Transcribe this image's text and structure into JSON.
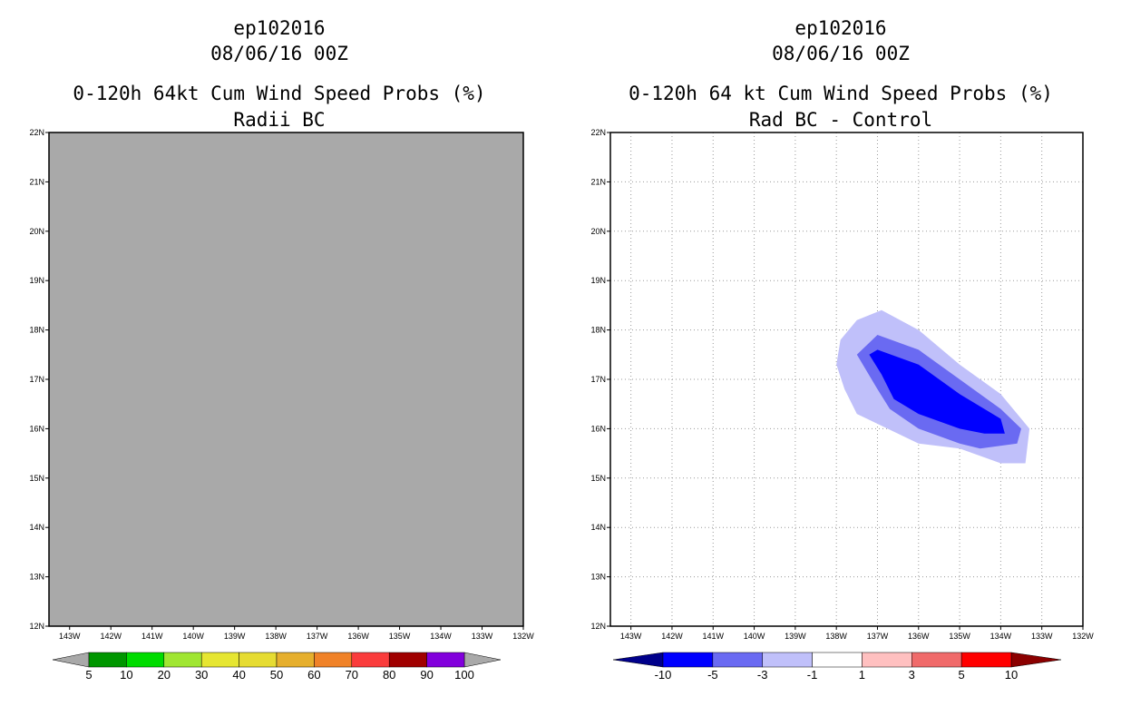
{
  "colors": {
    "missing_fill": "#a9a9a9",
    "frame": "#000000",
    "grid": "#999999",
    "contour": {
      "-10": "#0000ff",
      "-5": "#6a6af2",
      "-3": "#c0c0fa"
    }
  },
  "chart_data": [
    {
      "type": "heatmap",
      "storm_id": "ep102016",
      "init_time": "08/06/16 00Z",
      "title": "0-120h 64kt Cum Wind Speed Probs (%)",
      "subtitle": "Radii BC",
      "x_axis": {
        "range": [
          -143.5,
          -132
        ],
        "tick_values": [
          -143,
          -142,
          -141,
          -140,
          -139,
          -138,
          -137,
          -136,
          -135,
          -134,
          -133,
          -132
        ],
        "tick_labels": [
          "143W",
          "142W",
          "141W",
          "140W",
          "139W",
          "138W",
          "137W",
          "136W",
          "135W",
          "134W",
          "133W",
          "132W"
        ]
      },
      "y_axis": {
        "range": [
          12,
          22
        ],
        "tick_values": [
          12,
          13,
          14,
          15,
          16,
          17,
          18,
          19,
          20,
          21,
          22
        ],
        "tick_labels": [
          "12N",
          "13N",
          "14N",
          "15N",
          "16N",
          "17N",
          "18N",
          "19N",
          "20N",
          "21N",
          "22N"
        ]
      },
      "grid": false,
      "field": "undefined (entire domain shaded gray, no probability contours)",
      "colorbar": {
        "labels": [
          "5",
          "10",
          "20",
          "30",
          "40",
          "50",
          "60",
          "70",
          "80",
          "90",
          "100"
        ],
        "colors": [
          "#009600",
          "#00dc00",
          "#a0e632",
          "#e6e632",
          "#e6dc32",
          "#e6af2d",
          "#f08228",
          "#fa3c3c",
          "#a00000",
          "#8200dc"
        ],
        "end_color": "#a9a9a9"
      }
    },
    {
      "type": "heatmap",
      "storm_id": "ep102016",
      "init_time": "08/06/16 00Z",
      "title": "0-120h 64 kt Cum Wind Speed Probs (%)",
      "subtitle": "Rad BC - Control",
      "x_axis": {
        "range": [
          -143.5,
          -132
        ],
        "tick_values": [
          -143,
          -142,
          -141,
          -140,
          -139,
          -138,
          -137,
          -136,
          -135,
          -134,
          -133,
          -132
        ],
        "tick_labels": [
          "143W",
          "142W",
          "141W",
          "140W",
          "139W",
          "138W",
          "137W",
          "136W",
          "135W",
          "134W",
          "133W",
          "132W"
        ]
      },
      "y_axis": {
        "range": [
          12,
          22
        ],
        "tick_values": [
          12,
          13,
          14,
          15,
          16,
          17,
          18,
          19,
          20,
          21,
          22
        ],
        "tick_labels": [
          "12N",
          "13N",
          "14N",
          "15N",
          "16N",
          "17N",
          "18N",
          "19N",
          "20N",
          "21N",
          "22N"
        ]
      },
      "grid": true,
      "contours": [
        {
          "level": -3,
          "polygon": [
            [
              -137.9,
              17.8
            ],
            [
              -137.5,
              18.2
            ],
            [
              -136.9,
              18.4
            ],
            [
              -136.0,
              18.0
            ],
            [
              -135.0,
              17.3
            ],
            [
              -134.0,
              16.7
            ],
            [
              -133.3,
              16.0
            ],
            [
              -133.4,
              15.3
            ],
            [
              -134.0,
              15.3
            ],
            [
              -135.0,
              15.6
            ],
            [
              -136.0,
              15.7
            ],
            [
              -137.0,
              16.1
            ],
            [
              -137.5,
              16.3
            ],
            [
              -137.8,
              16.8
            ],
            [
              -138.0,
              17.3
            ]
          ]
        },
        {
          "level": -5,
          "polygon": [
            [
              -137.5,
              17.5
            ],
            [
              -137.0,
              17.9
            ],
            [
              -136.0,
              17.6
            ],
            [
              -135.0,
              17.0
            ],
            [
              -134.0,
              16.4
            ],
            [
              -133.5,
              16.0
            ],
            [
              -133.6,
              15.7
            ],
            [
              -134.5,
              15.6
            ],
            [
              -135.0,
              15.7
            ],
            [
              -136.0,
              16.0
            ],
            [
              -136.7,
              16.4
            ],
            [
              -137.0,
              16.8
            ]
          ]
        },
        {
          "level": -10,
          "polygon": [
            [
              -137.2,
              17.5
            ],
            [
              -137.0,
              17.6
            ],
            [
              -136.0,
              17.3
            ],
            [
              -135.0,
              16.7
            ],
            [
              -134.0,
              16.2
            ],
            [
              -133.9,
              15.9
            ],
            [
              -134.4,
              15.9
            ],
            [
              -135.0,
              16.0
            ],
            [
              -136.0,
              16.3
            ],
            [
              -136.6,
              16.6
            ],
            [
              -136.9,
              17.1
            ]
          ]
        }
      ],
      "colorbar": {
        "labels": [
          "-10",
          "-5",
          "-3",
          "-1",
          "1",
          "3",
          "5",
          "10"
        ],
        "colors": [
          "#0000ff",
          "#6a6af2",
          "#c0c0fa",
          "#ffffff",
          "#ffc0c0",
          "#f06a6a",
          "#ff0000"
        ],
        "low_end_color": "#00008b",
        "high_end_color": "#8b0000"
      }
    }
  ]
}
